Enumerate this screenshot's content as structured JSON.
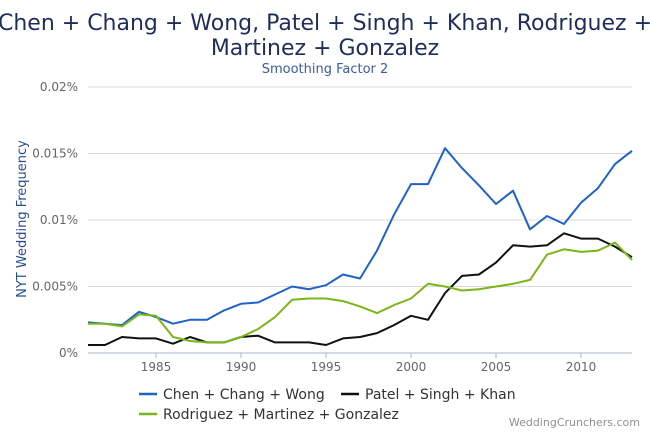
{
  "chart_data": {
    "type": "line",
    "title": "Chen + Chang + Wong, Patel + Singh + Khan, Rodriguez + Martinez + Gonzalez",
    "title_lines": [
      "Chen + Chang + Wong, Patel + Singh + Khan, Rodriguez +",
      "Martinez + Gonzalez"
    ],
    "subtitle": "Smoothing Factor 2",
    "xlabel": "",
    "ylabel": "NYT Wedding Frequency",
    "xlim": [
      1981,
      2013
    ],
    "ylim": [
      0,
      0.02
    ],
    "x_ticks": [
      1985,
      1990,
      1995,
      2000,
      2005,
      2010
    ],
    "x_tick_labels": [
      "1985",
      "1990",
      "1995",
      "2000",
      "2005",
      "2010"
    ],
    "y_ticks": [
      0,
      0.005,
      0.01,
      0.015,
      0.02
    ],
    "y_tick_labels": [
      "0%",
      "0.005%",
      "0.01%",
      "0.015%",
      "0.02%"
    ],
    "grid": "horizontal",
    "legend_position": "bottom",
    "credit": "WeddingCrunchers.com",
    "x": [
      1981,
      1982,
      1983,
      1984,
      1985,
      1986,
      1987,
      1988,
      1989,
      1990,
      1991,
      1992,
      1993,
      1994,
      1995,
      1996,
      1997,
      1998,
      1999,
      2000,
      2001,
      2002,
      2003,
      2004,
      2005,
      2006,
      2007,
      2008,
      2009,
      2010,
      2011,
      2012,
      2013
    ],
    "series": [
      {
        "name": "Chen + Chang + Wong",
        "color": "#1f62c8",
        "values": [
          0.0023,
          0.0022,
          0.0021,
          0.0031,
          0.0027,
          0.0022,
          0.0025,
          0.0025,
          0.0032,
          0.0037,
          0.0038,
          0.0044,
          0.005,
          0.0048,
          0.0051,
          0.0059,
          0.0056,
          0.0077,
          0.0104,
          0.0127,
          0.0127,
          0.0154,
          0.0139,
          0.0126,
          0.0112,
          0.0122,
          0.0093,
          0.0103,
          0.0097,
          0.0113,
          0.0124,
          0.0142,
          0.0152
        ]
      },
      {
        "name": "Patel + Singh + Khan",
        "color": "#111111",
        "values": [
          0.0006,
          0.0006,
          0.0012,
          0.0011,
          0.0011,
          0.0007,
          0.0012,
          0.0008,
          0.0008,
          0.0012,
          0.0013,
          0.0008,
          0.0008,
          0.0008,
          0.0006,
          0.0011,
          0.0012,
          0.0015,
          0.0021,
          0.0028,
          0.0025,
          0.0045,
          0.0058,
          0.0059,
          0.0068,
          0.0081,
          0.008,
          0.0081,
          0.009,
          0.0086,
          0.0086,
          0.008,
          0.0072
        ]
      },
      {
        "name": "Rodriguez + Martinez + Gonzalez",
        "color": "#7cb518",
        "values": [
          0.0022,
          0.0022,
          0.002,
          0.0029,
          0.0028,
          0.0012,
          0.0009,
          0.0008,
          0.0008,
          0.0012,
          0.0018,
          0.0027,
          0.004,
          0.0041,
          0.0041,
          0.0039,
          0.0035,
          0.003,
          0.0036,
          0.0041,
          0.0052,
          0.005,
          0.0047,
          0.0048,
          0.005,
          0.0052,
          0.0055,
          0.0074,
          0.0078,
          0.0076,
          0.0077,
          0.0083,
          0.007
        ]
      }
    ]
  }
}
